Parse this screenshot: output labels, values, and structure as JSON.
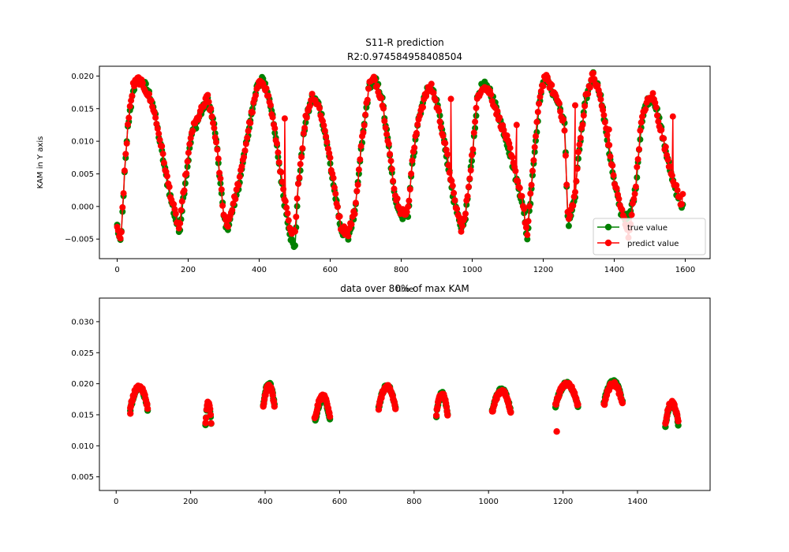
{
  "chart_data": [
    {
      "type": "line",
      "title_line1": "S11-R prediction",
      "title_line2": "R2:0.974584958408504",
      "xlabel": "time",
      "ylabel": "KAM in Y axis",
      "xlim": [
        -50,
        1670
      ],
      "ylim": [
        -0.008,
        0.0215
      ],
      "xticks": [
        "0",
        "200",
        "400",
        "600",
        "800",
        "1000",
        "1200",
        "1400",
        "1600"
      ],
      "xtick_values": [
        0,
        200,
        400,
        600,
        800,
        1000,
        1200,
        1400,
        1600
      ],
      "yticks": [
        "−0.005",
        "0.000",
        "0.005",
        "0.010",
        "0.015",
        "0.020"
      ],
      "ytick_values": [
        -0.005,
        0.0,
        0.005,
        0.01,
        0.015,
        0.02
      ],
      "grid": false,
      "legend_position": "lower-right",
      "series": [
        {
          "name": "true value",
          "color": "#008000",
          "keypoints": [
            [
              0,
              -0.003
            ],
            [
              10,
              -0.006
            ],
            [
              20,
              0.004
            ],
            [
              30,
              0.012
            ],
            [
              45,
              0.018
            ],
            [
              60,
              0.0193
            ],
            [
              80,
              0.0185
            ],
            [
              100,
              0.016
            ],
            [
              120,
              0.01
            ],
            [
              140,
              0.004
            ],
            [
              160,
              -0.001
            ],
            [
              175,
              -0.004
            ],
            [
              190,
              0.003
            ],
            [
              210,
              0.011
            ],
            [
              235,
              0.0142
            ],
            [
              255,
              0.0165
            ],
            [
              275,
              0.012
            ],
            [
              290,
              0.004
            ],
            [
              300,
              -0.0015
            ],
            [
              310,
              -0.0035
            ],
            [
              330,
              0.0005
            ],
            [
              350,
              0.005
            ],
            [
              370,
              0.0118
            ],
            [
              395,
              0.0185
            ],
            [
              410,
              0.0198
            ],
            [
              430,
              0.0165
            ],
            [
              450,
              0.009
            ],
            [
              470,
              0.001
            ],
            [
              490,
              -0.005
            ],
            [
              500,
              -0.0068
            ],
            [
              510,
              0.003
            ],
            [
              530,
              0.013
            ],
            [
              550,
              0.0168
            ],
            [
              570,
              0.0155
            ],
            [
              590,
              0.01
            ],
            [
              610,
              0.003
            ],
            [
              630,
              -0.0035
            ],
            [
              650,
              -0.0047
            ],
            [
              670,
              -0.001
            ],
            [
              690,
              0.01
            ],
            [
              710,
              0.0185
            ],
            [
              725,
              0.0196
            ],
            [
              745,
              0.017
            ],
            [
              765,
              0.009
            ],
            [
              780,
              0.002
            ],
            [
              800,
              -0.0015
            ],
            [
              820,
              -0.001
            ],
            [
              830,
              0.006
            ],
            [
              850,
              0.0138
            ],
            [
              870,
              0.0175
            ],
            [
              885,
              0.0182
            ],
            [
              905,
              0.015
            ],
            [
              930,
              0.007
            ],
            [
              950,
              0.0005
            ],
            [
              970,
              -0.004
            ],
            [
              980,
              -0.002
            ],
            [
              1000,
              0.0075
            ],
            [
              1015,
              0.0168
            ],
            [
              1030,
              0.0188
            ],
            [
              1050,
              0.0178
            ],
            [
              1075,
              0.014
            ],
            [
              1100,
              0.0095
            ],
            [
              1120,
              0.005
            ],
            [
              1140,
              0.001
            ],
            [
              1155,
              -0.005
            ],
            [
              1170,
              0.005
            ],
            [
              1190,
              0.0165
            ],
            [
              1205,
              0.0198
            ],
            [
              1225,
              0.0178
            ],
            [
              1245,
              0.0155
            ],
            [
              1260,
              0.0125
            ],
            [
              1270,
              -0.003
            ],
            [
              1290,
              0.0015
            ],
            [
              1300,
              0.008
            ],
            [
              1320,
              0.0165
            ],
            [
              1340,
              0.0203
            ],
            [
              1360,
              0.0175
            ],
            [
              1380,
              0.0105
            ],
            [
              1400,
              0.0035
            ],
            [
              1420,
              -0.001
            ],
            [
              1440,
              -0.002
            ],
            [
              1460,
              0.0025
            ],
            [
              1475,
              0.012
            ],
            [
              1490,
              0.016
            ],
            [
              1510,
              0.0168
            ],
            [
              1530,
              0.0125
            ],
            [
              1550,
              0.0072
            ],
            [
              1570,
              0.003
            ],
            [
              1590,
              0.0002
            ]
          ]
        },
        {
          "name": "predict value",
          "color": "#ff0000",
          "keypoints": [
            [
              0,
              -0.0035
            ],
            [
              10,
              -0.0055
            ],
            [
              20,
              0.0045
            ],
            [
              30,
              0.0125
            ],
            [
              45,
              0.0185
            ],
            [
              60,
              0.0195
            ],
            [
              80,
              0.018
            ],
            [
              100,
              0.0155
            ],
            [
              120,
              0.0105
            ],
            [
              140,
              0.0045
            ],
            [
              160,
              -0.0005
            ],
            [
              175,
              -0.0035
            ],
            [
              190,
              0.0035
            ],
            [
              210,
              0.0115
            ],
            [
              235,
              0.0145
            ],
            [
              255,
              0.0168
            ],
            [
              275,
              0.0115
            ],
            [
              290,
              0.0045
            ],
            [
              300,
              -0.001
            ],
            [
              310,
              -0.003
            ],
            [
              330,
              0.001
            ],
            [
              350,
              0.0055
            ],
            [
              370,
              0.012
            ],
            [
              395,
              0.0182
            ],
            [
              410,
              0.0195
            ],
            [
              430,
              0.016
            ],
            [
              450,
              0.0095
            ],
            [
              470,
              0.0015
            ],
            [
              490,
              -0.0045
            ],
            [
              500,
              -0.004
            ],
            [
              510,
              0.0035
            ],
            [
              530,
              0.0133
            ],
            [
              550,
              0.0172
            ],
            [
              570,
              0.015
            ],
            [
              590,
              0.0105
            ],
            [
              610,
              0.0035
            ],
            [
              630,
              -0.003
            ],
            [
              650,
              -0.0042
            ],
            [
              670,
              -0.0005
            ],
            [
              690,
              0.0105
            ],
            [
              710,
              0.0188
            ],
            [
              725,
              0.0195
            ],
            [
              745,
              0.0165
            ],
            [
              765,
              0.0095
            ],
            [
              780,
              0.0025
            ],
            [
              800,
              -0.001
            ],
            [
              820,
              -0.0005
            ],
            [
              830,
              0.0065
            ],
            [
              850,
              0.014
            ],
            [
              870,
              0.0172
            ],
            [
              885,
              0.0185
            ],
            [
              905,
              0.0145
            ],
            [
              930,
              0.0075
            ],
            [
              950,
              0.001
            ],
            [
              970,
              -0.0035
            ],
            [
              980,
              -0.0015
            ],
            [
              1000,
              0.008
            ],
            [
              1015,
              0.017
            ],
            [
              1030,
              0.0185
            ],
            [
              1050,
              0.0175
            ],
            [
              1075,
              0.0135
            ],
            [
              1100,
              0.01
            ],
            [
              1120,
              0.0055
            ],
            [
              1140,
              0.0015
            ],
            [
              1155,
              -0.0045
            ],
            [
              1170,
              0.0055
            ],
            [
              1190,
              0.017
            ],
            [
              1205,
              0.02
            ],
            [
              1225,
              0.018
            ],
            [
              1245,
              0.0158
            ],
            [
              1260,
              0.012
            ],
            [
              1270,
              -0.0025
            ],
            [
              1290,
              0.002
            ],
            [
              1300,
              0.0085
            ],
            [
              1320,
              0.0168
            ],
            [
              1340,
              0.0202
            ],
            [
              1360,
              0.017
            ],
            [
              1380,
              0.011
            ],
            [
              1400,
              0.004
            ],
            [
              1420,
              -0.0005
            ],
            [
              1440,
              -0.0045
            ],
            [
              1460,
              0.003
            ],
            [
              1475,
              0.0125
            ],
            [
              1490,
              0.0158
            ],
            [
              1510,
              0.017
            ],
            [
              1530,
              0.012
            ],
            [
              1550,
              0.0075
            ],
            [
              1570,
              0.0035
            ],
            [
              1590,
              0.0003
            ],
            [
              1600,
              0.0042
            ]
          ],
          "spikes": [
            [
              472,
              0.0135
            ],
            [
              940,
              0.0165
            ],
            [
              1125,
              0.0125
            ],
            [
              1385,
              0.0118
            ],
            [
              1565,
              0.0138
            ],
            [
              1290,
              0.0155
            ]
          ]
        }
      ]
    },
    {
      "type": "scatter",
      "title": "data over 80% of max KAM",
      "xlim": [
        -45,
        1595
      ],
      "ylim": [
        0.0028,
        0.0338
      ],
      "xticks": [
        "0",
        "200",
        "400",
        "600",
        "800",
        "1000",
        "1200",
        "1400"
      ],
      "xtick_values": [
        0,
        200,
        400,
        600,
        800,
        1000,
        1200,
        1400
      ],
      "yticks": [
        "0.005",
        "0.010",
        "0.015",
        "0.020",
        "0.025",
        "0.030"
      ],
      "ytick_values": [
        0.005,
        0.01,
        0.015,
        0.02,
        0.025,
        0.03
      ],
      "grid": false,
      "series": [
        {
          "name": "true value",
          "color": "#008000",
          "clusters": [
            [
              38,
              85,
              0.0193
            ],
            [
              240,
              255,
              0.0168
            ],
            [
              395,
              425,
              0.02
            ],
            [
              535,
              575,
              0.0175
            ],
            [
              705,
              750,
              0.0196
            ],
            [
              860,
              890,
              0.0184
            ],
            [
              1010,
              1060,
              0.019
            ],
            [
              1180,
              1240,
              0.02
            ],
            [
              1310,
              1360,
              0.0203
            ],
            [
              1475,
              1510,
              0.0168
            ]
          ]
        },
        {
          "name": "predict value",
          "color": "#ff0000",
          "clusters": [
            [
              38,
              85,
              0.0195
            ],
            [
              240,
              255,
              0.017
            ],
            [
              395,
              425,
              0.0197
            ],
            [
              535,
              575,
              0.018
            ],
            [
              705,
              750,
              0.0195
            ],
            [
              860,
              890,
              0.0185
            ],
            [
              1010,
              1060,
              0.0188
            ],
            [
              1180,
              1240,
              0.02
            ],
            [
              1310,
              1360,
              0.02
            ],
            [
              1475,
              1510,
              0.017
            ]
          ],
          "outliers": [
            [
              38,
              0.0152
            ],
            [
              533,
              0.0145
            ],
            [
              1183,
              0.0123
            ]
          ]
        }
      ]
    }
  ]
}
